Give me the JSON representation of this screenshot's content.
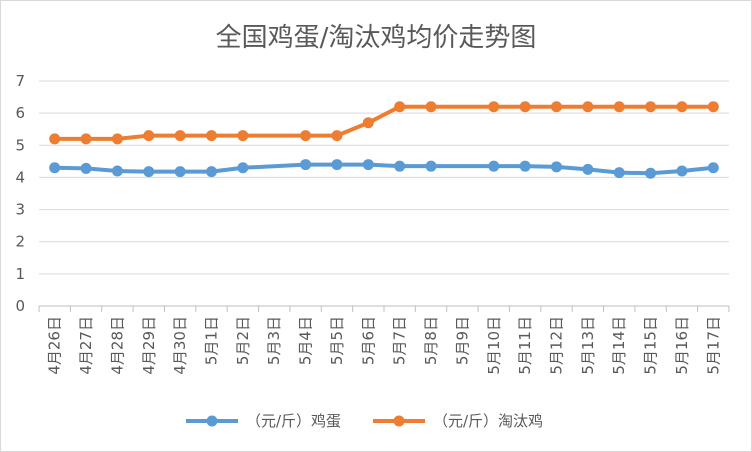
{
  "chart_data": {
    "type": "line",
    "title": "全国鸡蛋/淘汰鸡均价走势图",
    "xlabel": "",
    "ylabel": "",
    "categories": [
      "4月26日",
      "4月27日",
      "4月28日",
      "4月29日",
      "4月30日",
      "5月1日",
      "5月2日",
      "5月3日",
      "5月4日",
      "5月5日",
      "5月6日",
      "5月7日",
      "5月8日",
      "5月9日",
      "5月10日",
      "5月11日",
      "5月12日",
      "5月13日",
      "5月14日",
      "5月15日",
      "5月16日",
      "5月17日"
    ],
    "ylim": [
      0,
      7
    ],
    "yticks": [
      0,
      1,
      2,
      3,
      4,
      5,
      6,
      7
    ],
    "grid": true,
    "legend": "bottom",
    "series": [
      {
        "name": "（元/斤）鸡蛋",
        "color": "#5b9bd5",
        "values": [
          4.3,
          4.28,
          4.2,
          4.18,
          4.18,
          4.18,
          4.3,
          null,
          4.4,
          4.4,
          4.4,
          4.35,
          4.35,
          null,
          4.35,
          4.35,
          4.33,
          4.25,
          4.15,
          4.13,
          4.2,
          4.3
        ]
      },
      {
        "name": "（元/斤）淘汰鸡",
        "color": "#ed7d31",
        "values": [
          5.2,
          5.2,
          5.2,
          5.3,
          5.3,
          5.3,
          5.3,
          null,
          5.3,
          5.3,
          5.7,
          6.2,
          6.2,
          null,
          6.2,
          6.2,
          6.2,
          6.2,
          6.2,
          6.2,
          6.2,
          6.2
        ]
      }
    ]
  }
}
